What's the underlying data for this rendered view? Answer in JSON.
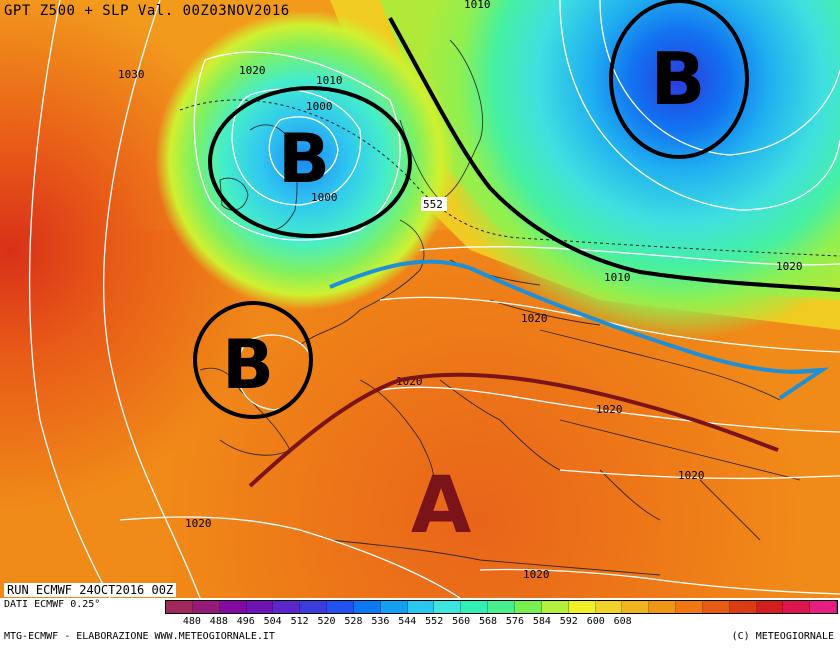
{
  "header": {
    "title": "GPT Z500 + SLP Val. 00Z03NOV2016"
  },
  "run_info": "RUN ECMWF 24OCT2016 00Z",
  "data_source": "DATI ECMWF 0.25°",
  "credit_left": "MTG-ECMWF - ELABORAZIONE WWW.METEOGIORNALE.IT",
  "credit_right": "(C) METEOGIORNALE",
  "colorbar": {
    "ticks": [
      "480",
      "488",
      "496",
      "504",
      "512",
      "520",
      "528",
      "536",
      "544",
      "552",
      "560",
      "568",
      "576",
      "584",
      "592",
      "600",
      "608"
    ],
    "colors": [
      "#a0285a",
      "#961a78",
      "#820aa0",
      "#6e14b4",
      "#5a28c8",
      "#3c3cdc",
      "#2050f0",
      "#0a78f0",
      "#14a0f0",
      "#28c8f0",
      "#3ce6dc",
      "#32f0b4",
      "#46f08c",
      "#78f050",
      "#b4f03c",
      "#f0f028",
      "#f0d228",
      "#f0b41e",
      "#f09614",
      "#f07814",
      "#e65a14",
      "#dc3c14",
      "#d21e1e",
      "#dc1450",
      "#e61e82"
    ]
  },
  "isobar_labels": [
    "1030",
    "1020",
    "1010",
    "1000",
    "1000",
    "552",
    "1010",
    "1020",
    "1020",
    "1020",
    "1020",
    "1020",
    "1020",
    "1020",
    "1020",
    "1020",
    "1010"
  ],
  "systems": [
    {
      "letter": "B"
    },
    {
      "letter": "B"
    },
    {
      "letter": "B"
    },
    {
      "letter": "A"
    }
  ],
  "colors": {
    "low_ring": "#000000",
    "jet_cold": "#1e90d8",
    "jet_warm": "#7a1418",
    "high_fill": "#7a1418"
  }
}
